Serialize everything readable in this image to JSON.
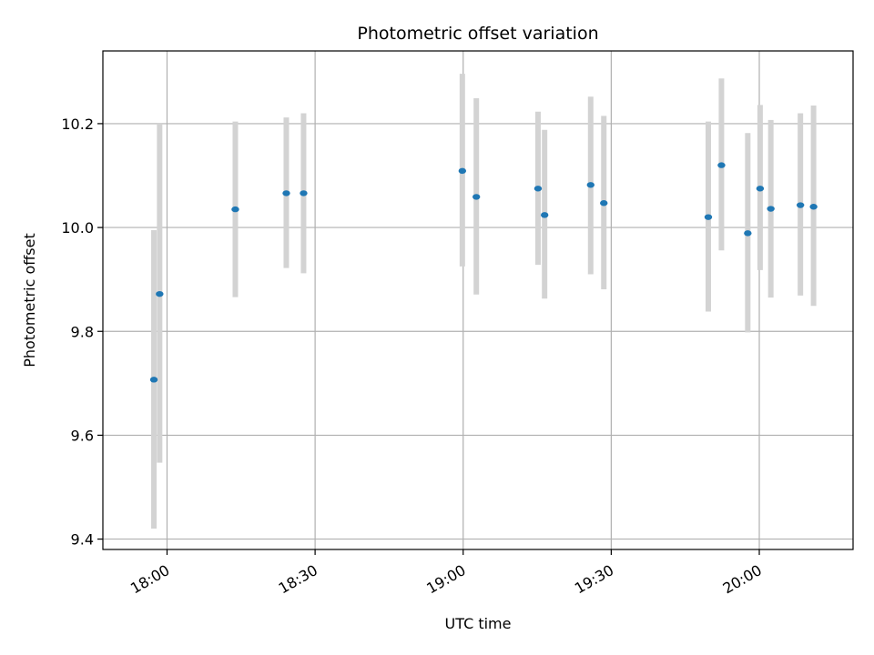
{
  "chart_data": {
    "type": "scatter",
    "title": "Photometric offset variation",
    "xlabel": "UTC time",
    "ylabel": "Photometric offset",
    "ylim": [
      9.38,
      10.34
    ],
    "xlim": [
      "17:47",
      "20:19"
    ],
    "grid": true,
    "x_ticks": [
      "18:00",
      "18:30",
      "19:00",
      "19:30",
      "20:00"
    ],
    "y_ticks": [
      "9.4",
      "9.6",
      "9.8",
      "10.0",
      "10.2"
    ],
    "colors": {
      "marker": "#1f77b4",
      "errorbar": "#d3d3d3",
      "grid": "#b0b0b0",
      "axes": "#000000"
    },
    "points": [
      {
        "t": "17:57:20",
        "y": 9.707,
        "lo": 9.42,
        "hi": 9.995
      },
      {
        "t": "17:58:30",
        "y": 9.872,
        "lo": 9.547,
        "hi": 10.2
      },
      {
        "t": "18:13:50",
        "y": 10.035,
        "lo": 9.866,
        "hi": 10.204
      },
      {
        "t": "18:24:10",
        "y": 10.066,
        "lo": 9.922,
        "hi": 10.212
      },
      {
        "t": "18:27:40",
        "y": 10.066,
        "lo": 9.912,
        "hi": 10.22
      },
      {
        "t": "18:59:50",
        "y": 10.109,
        "lo": 9.925,
        "hi": 10.296
      },
      {
        "t": "19:02:40",
        "y": 10.059,
        "lo": 9.871,
        "hi": 10.249
      },
      {
        "t": "19:15:10",
        "y": 10.075,
        "lo": 9.928,
        "hi": 10.223
      },
      {
        "t": "19:16:30",
        "y": 10.024,
        "lo": 9.863,
        "hi": 10.188
      },
      {
        "t": "19:25:50",
        "y": 10.082,
        "lo": 9.91,
        "hi": 10.252
      },
      {
        "t": "19:28:30",
        "y": 10.047,
        "lo": 9.881,
        "hi": 10.215
      },
      {
        "t": "19:49:40",
        "y": 10.02,
        "lo": 9.838,
        "hi": 10.204
      },
      {
        "t": "19:52:20",
        "y": 10.12,
        "lo": 9.956,
        "hi": 10.287
      },
      {
        "t": "19:57:40",
        "y": 9.989,
        "lo": 9.798,
        "hi": 10.182
      },
      {
        "t": "20:00:10",
        "y": 10.075,
        "lo": 9.918,
        "hi": 10.236
      },
      {
        "t": "20:02:20",
        "y": 10.036,
        "lo": 9.865,
        "hi": 10.207
      },
      {
        "t": "20:08:20",
        "y": 10.043,
        "lo": 9.869,
        "hi": 10.22
      },
      {
        "t": "20:11:00",
        "y": 10.04,
        "lo": 9.849,
        "hi": 10.235
      }
    ]
  }
}
